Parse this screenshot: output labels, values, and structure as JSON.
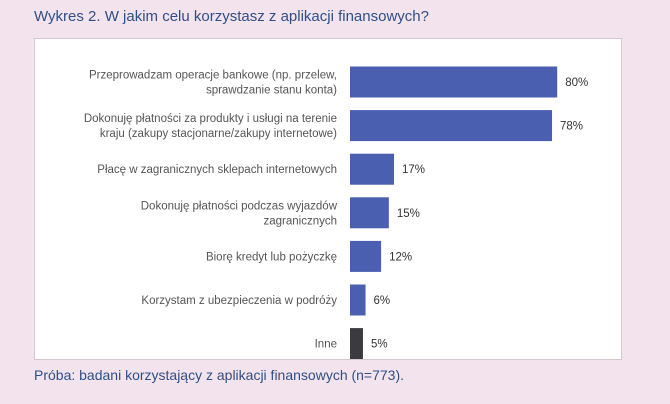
{
  "title": "Wykres 2. W jakim celu korzystasz z aplikacji finansowych?",
  "footnote": "Próba: badani korzystający z aplikacji finansowych (n=773).",
  "colors": {
    "bar": "#4a5fb0",
    "bar_other": "#3a3a3f",
    "label": "#555555",
    "value": "#333333"
  },
  "chart_data": {
    "type": "bar",
    "orientation": "horizontal",
    "categories": [
      [
        "Przeprowadzam operacje bankowe (np. przelew,",
        "sprawdzanie stanu konta)"
      ],
      [
        "Dokonuję płatności za produkty i usługi na terenie",
        "kraju (zakupy stacjonarne/zakupy internetowe)"
      ],
      [
        "Płacę w zagranicznych sklepach internetowych"
      ],
      [
        "Dokonuję płatności podczas wyjazdów",
        "zagranicznych"
      ],
      [
        "Biorę kredyt lub pożyczkę"
      ],
      [
        "Korzystam z ubezpieczenia w podróży"
      ],
      [
        "Inne"
      ]
    ],
    "values": [
      80,
      78,
      17,
      15,
      12,
      6,
      5
    ],
    "value_labels": [
      "80%",
      "78%",
      "17%",
      "15%",
      "12%",
      "6%",
      "5%"
    ],
    "unit": "%",
    "xlim": [
      0,
      100
    ],
    "grid": false,
    "legend": "none"
  }
}
